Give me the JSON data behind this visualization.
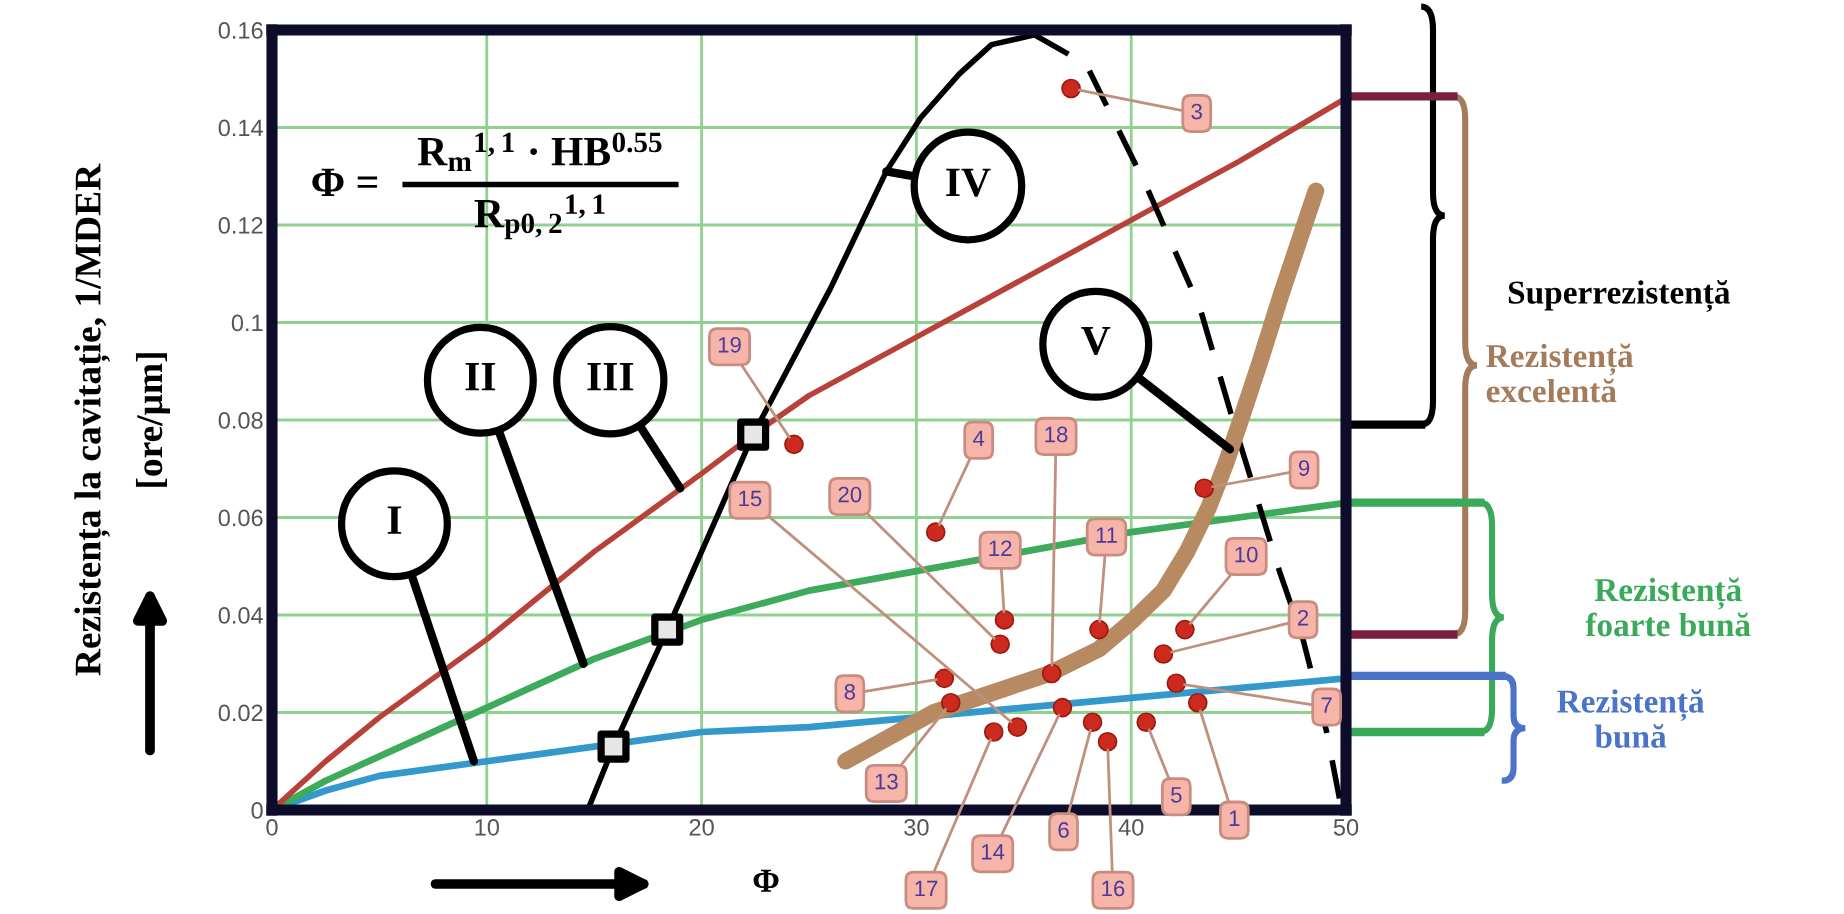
{
  "chart_data": {
    "type": "line",
    "xlabel": "Φ",
    "ylabel": "Rezistența la cavitație, 1/MDER\n[ore/μm]",
    "xlim": [
      0,
      50
    ],
    "ylim": [
      0,
      0.16
    ],
    "xticks": [
      0,
      10,
      20,
      30,
      40,
      50
    ],
    "yticks": [
      0,
      0.02,
      0.04,
      0.06,
      0.08,
      0.1,
      0.12,
      0.14,
      0.16
    ],
    "grid": true,
    "series": [
      {
        "color": "#3399cc",
        "x": [
          0,
          2.5,
          5,
          10,
          15,
          20,
          25,
          30,
          35,
          40,
          45,
          50
        ],
        "values": [
          0,
          0.004,
          0.007,
          0.01,
          0.013,
          0.016,
          0.017,
          0.019,
          0.021,
          0.023,
          0.025,
          0.027
        ]
      },
      {
        "color": "#3daa5c",
        "x": [
          0,
          2.5,
          5,
          10,
          15,
          20,
          25,
          30,
          35,
          40,
          45,
          50
        ],
        "values": [
          0,
          0.006,
          0.011,
          0.021,
          0.031,
          0.039,
          0.045,
          0.049,
          0.053,
          0.057,
          0.06,
          0.063
        ]
      },
      {
        "color": "#b8423a",
        "x": [
          0,
          2.5,
          5,
          10,
          15,
          20,
          22.4,
          25,
          30,
          35,
          40,
          45,
          50
        ],
        "values": [
          0,
          0.01,
          0.019,
          0.035,
          0.053,
          0.069,
          0.077,
          0.085,
          0.097,
          0.109,
          0.121,
          0.133,
          0.146
        ]
      },
      {
        "color": "#000000",
        "line_style": "solid",
        "x": [
          14.7,
          15.9,
          18.4,
          22.4,
          26.0,
          28.6,
          30.2,
          32.0,
          33.5,
          35.5
        ],
        "values": [
          0,
          0.013,
          0.037,
          0.077,
          0.107,
          0.131,
          0.142,
          0.151,
          0.157,
          0.159
        ]
      },
      {
        "color": "#000000",
        "line_style": "dashed",
        "x": [
          35.5,
          37.9,
          40.7,
          43.2,
          44.8,
          46.9,
          48.0,
          49.1,
          49.8
        ],
        "values": [
          0.159,
          0.153,
          0.128,
          0.103,
          0.079,
          0.049,
          0.035,
          0.016,
          0
        ]
      },
      {
        "color": "#b88a62",
        "x": [
          26.7,
          30.8,
          33.5,
          36.2,
          38.5,
          40.1,
          41.5,
          42.6,
          43.6,
          44.4,
          45.1,
          46.0,
          47.0,
          48.6
        ],
        "values": [
          0.01,
          0.02,
          0.024,
          0.028,
          0.033,
          0.039,
          0.045,
          0.053,
          0.062,
          0.071,
          0.08,
          0.092,
          0.106,
          0.127
        ]
      },
      {
        "type": "scatter",
        "marker": "square",
        "color": "#000000",
        "x": [
          15.9,
          18.4,
          22.4
        ],
        "values": [
          0.013,
          0.037,
          0.077
        ]
      },
      {
        "type": "scatter",
        "marker": "circle",
        "color": "#cc2a1e",
        "x": [
          43.1,
          41.5,
          37.2,
          30.9,
          40.7,
          38.2,
          42.1,
          31.3,
          43.4,
          42.5,
          38.5,
          34.1,
          31.6,
          36.8,
          34.7,
          38.9,
          33.6,
          36.3,
          24.3,
          33.9
        ],
        "values": [
          0.022,
          0.032,
          0.148,
          0.057,
          0.018,
          0.018,
          0.026,
          0.027,
          0.066,
          0.037,
          0.037,
          0.039,
          0.022,
          0.021,
          0.017,
          0.014,
          0.016,
          0.028,
          0.075,
          0.034
        ]
      }
    ],
    "annotations": [
      "Φ =",
      "R$_{m}$$^{1,1}$ · HB$^{0.55}$",
      "R$_{p0,2}$$^{1,1}$",
      "Superrezistență",
      "Rezistență\nexcelentă",
      "Rezistență\nfoarte bună",
      "Rezistență\nbună",
      {
        "text": "I",
        "x": 9.4,
        "y": 0.01
      },
      {
        "text": "II",
        "x": 14.5,
        "y": 0.03
      },
      {
        "text": "III",
        "x": 19.0,
        "y": 0.066
      },
      {
        "text": "IV",
        "x": 28.6,
        "y": 0.131
      },
      {
        "text": "V",
        "x": 44.6,
        "y": 0.074
      },
      {
        "text": "1",
        "x": 43.1,
        "y": 0.022
      },
      {
        "text": "2",
        "x": 41.5,
        "y": 0.032
      },
      {
        "text": "3",
        "x": 37.2,
        "y": 0.148
      },
      {
        "text": "4",
        "x": 30.9,
        "y": 0.057
      },
      {
        "text": "5",
        "x": 40.7,
        "y": 0.018
      },
      {
        "text": "6",
        "x": 38.2,
        "y": 0.018
      },
      {
        "text": "7",
        "x": 42.1,
        "y": 0.026
      },
      {
        "text": "8",
        "x": 31.3,
        "y": 0.027
      },
      {
        "text": "9",
        "x": 43.4,
        "y": 0.066
      },
      {
        "text": "10",
        "x": 42.5,
        "y": 0.037
      },
      {
        "text": "11",
        "x": 38.5,
        "y": 0.037
      },
      {
        "text": "12",
        "x": 34.1,
        "y": 0.039
      },
      {
        "text": "13",
        "x": 31.6,
        "y": 0.022
      },
      {
        "text": "14",
        "x": 36.8,
        "y": 0.021
      },
      {
        "text": "15",
        "x": 34.7,
        "y": 0.017
      },
      {
        "text": "16",
        "x": 38.9,
        "y": 0.014
      },
      {
        "text": "17",
        "x": 33.6,
        "y": 0.016
      },
      {
        "text": "18",
        "x": 36.3,
        "y": 0.028
      },
      {
        "text": "19",
        "x": 24.3,
        "y": 0.075
      },
      {
        "text": "20",
        "x": 33.9,
        "y": 0.034
      }
    ]
  }
}
